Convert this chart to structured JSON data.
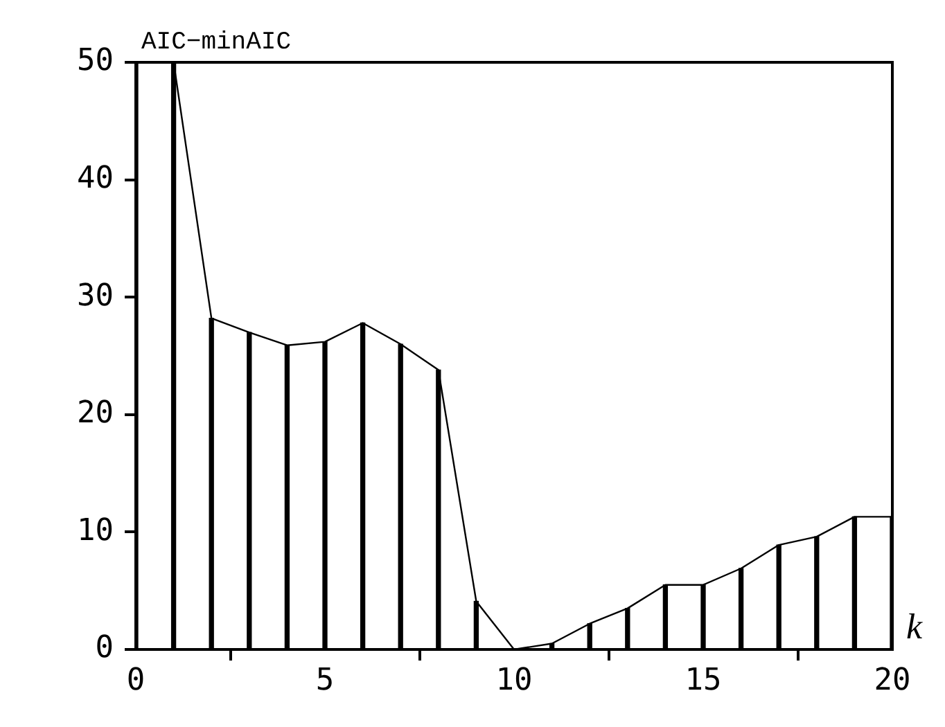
{
  "chart_data": {
    "type": "bar",
    "ylabel": "AIC−minAIC",
    "xlabel": "k",
    "x": [
      0,
      1,
      2,
      3,
      4,
      5,
      6,
      7,
      8,
      9,
      10,
      11,
      12,
      13,
      14,
      15,
      16,
      17,
      18,
      19,
      20
    ],
    "series": [
      {
        "color": "#000000",
        "values": [
          50,
          50,
          28.2,
          27.0,
          25.9,
          26.2,
          27.8,
          26.0,
          23.8,
          4.1,
          0,
          0.5,
          2.2,
          3.5,
          5.5,
          5.5,
          6.9,
          8.9,
          9.6,
          11.3,
          11.3
        ]
      },
      {
        "type": "line",
        "color": "#000000",
        "values": [
          null,
          50,
          28.2,
          27.0,
          25.9,
          26.2,
          27.8,
          26.0,
          23.8,
          4.1,
          0,
          0.5,
          2.2,
          3.5,
          5.5,
          5.5,
          6.9,
          8.9,
          9.6,
          11.3,
          11.3
        ]
      }
    ],
    "xlim": [
      0,
      20
    ],
    "xticks": [
      0,
      5,
      10,
      15,
      20
    ],
    "ylim": [
      0,
      50
    ],
    "yticks": [
      0,
      10,
      20,
      30,
      40,
      50
    ],
    "grid": false,
    "legend": false,
    "marker": "none",
    "line_style": "solid"
  }
}
